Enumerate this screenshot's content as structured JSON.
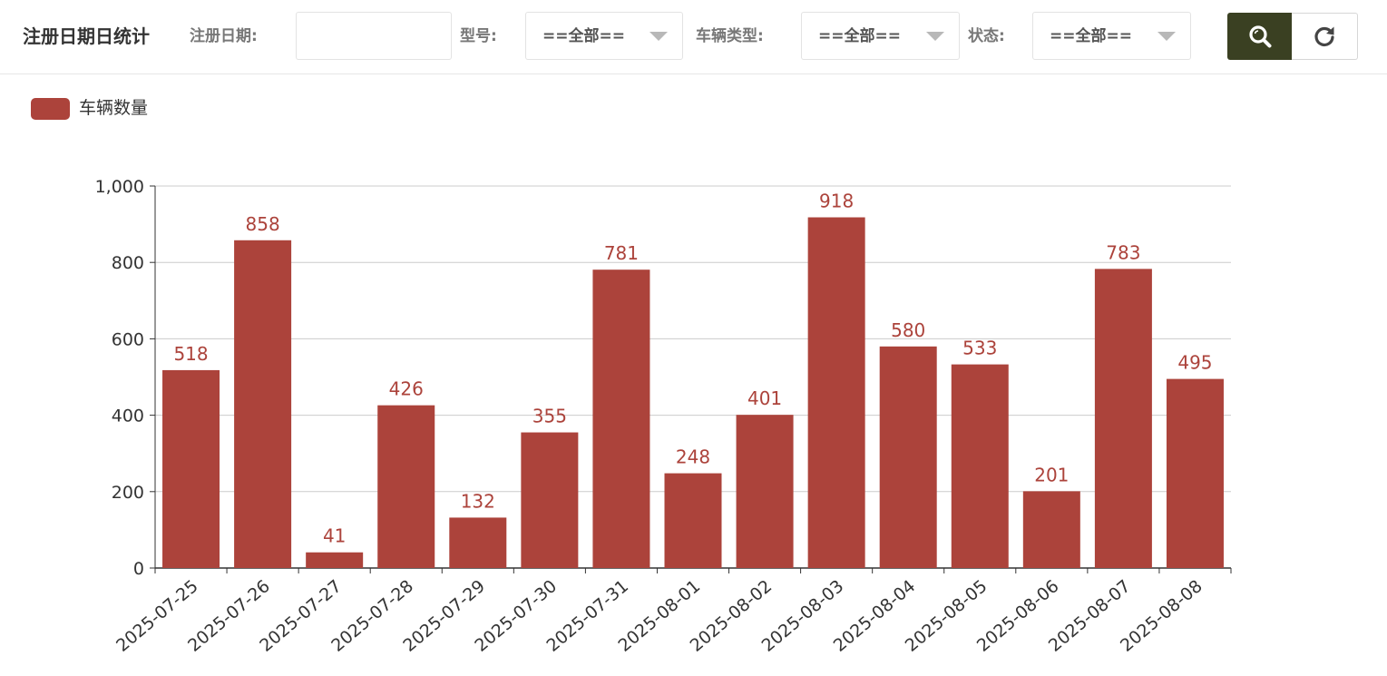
{
  "header": {
    "title": "注册日期日统计",
    "date_label": "注册日期:",
    "date_value": "",
    "model_label": "型号:",
    "model_value": "==全部==",
    "vehicle_type_label": "车辆类型:",
    "vehicle_type_value": "==全部==",
    "status_label": "状态:",
    "status_value": "==全部==",
    "search_icon": "search-icon",
    "refresh_icon": "refresh-icon"
  },
  "colors": {
    "bar": "#ac433b",
    "search_button": "#3a4022"
  },
  "chart_data": {
    "type": "bar",
    "categories": [
      "2025-07-25",
      "2025-07-26",
      "2025-07-27",
      "2025-07-28",
      "2025-07-29",
      "2025-07-30",
      "2025-07-31",
      "2025-08-01",
      "2025-08-02",
      "2025-08-03",
      "2025-08-04",
      "2025-08-05",
      "2025-08-06",
      "2025-08-07",
      "2025-08-08"
    ],
    "series": [
      {
        "name": "车辆数量",
        "values": [
          518,
          858,
          41,
          426,
          132,
          355,
          781,
          248,
          401,
          918,
          580,
          533,
          201,
          783,
          495
        ]
      }
    ],
    "ylim": [
      0,
      1000
    ],
    "yticks": [
      0,
      200,
      400,
      600,
      800,
      1000
    ],
    "ytick_labels": [
      "0",
      "200",
      "400",
      "600",
      "800",
      "1,000"
    ],
    "grid": true,
    "legend": "top-left",
    "data_labels": true
  }
}
